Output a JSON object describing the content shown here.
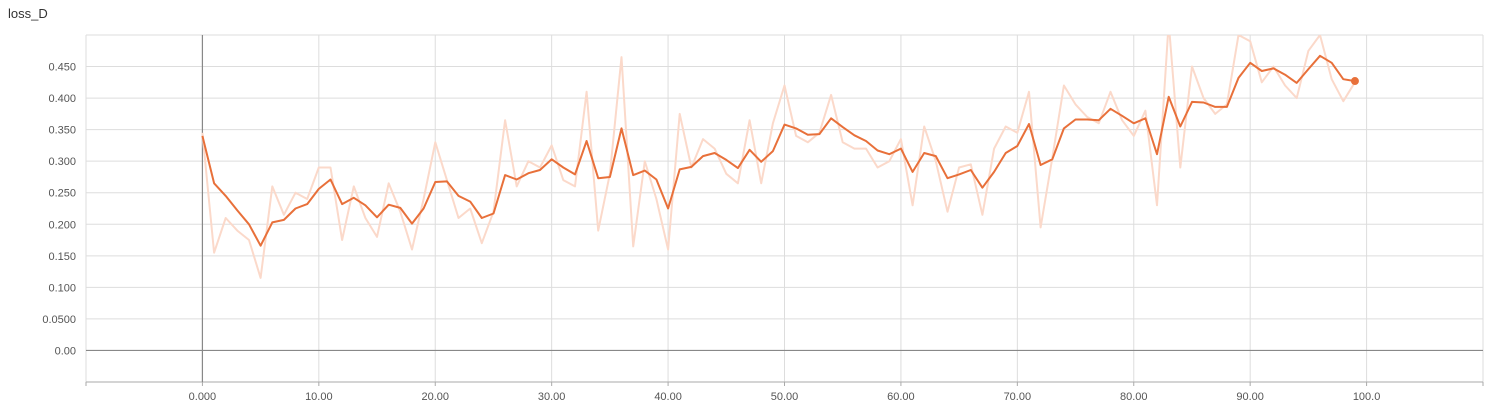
{
  "chart_data": {
    "type": "line",
    "title": "loss_D",
    "xlabel": "",
    "ylabel": "",
    "xlim": [
      -10,
      110
    ],
    "ylim": [
      -0.05,
      0.5
    ],
    "grid": true,
    "legend": "none",
    "x_ticks": [
      0,
      10,
      20,
      30,
      40,
      50,
      60,
      70,
      80,
      90,
      100
    ],
    "x_tick_labels": [
      "0.000",
      "10.00",
      "20.00",
      "30.00",
      "40.00",
      "50.00",
      "60.00",
      "70.00",
      "80.00",
      "90.00",
      "100.0"
    ],
    "y_ticks": [
      0,
      0.05,
      0.1,
      0.15,
      0.2,
      0.25,
      0.3,
      0.35,
      0.4,
      0.45
    ],
    "y_tick_labels": [
      "0.00",
      "0.0500",
      "0.100",
      "0.150",
      "0.200",
      "0.250",
      "0.300",
      "0.350",
      "0.400",
      "0.450"
    ],
    "colors": {
      "smoothed": "#e8703a",
      "raw": "#fbd9ca",
      "axis": "#888888",
      "grid": "#dddddd"
    },
    "x": [
      0,
      1,
      2,
      3,
      4,
      5,
      6,
      7,
      8,
      9,
      10,
      11,
      12,
      13,
      14,
      15,
      16,
      17,
      18,
      19,
      20,
      21,
      22,
      23,
      24,
      25,
      26,
      27,
      28,
      29,
      30,
      31,
      32,
      33,
      34,
      35,
      36,
      37,
      38,
      39,
      40,
      41,
      42,
      43,
      44,
      45,
      46,
      47,
      48,
      49,
      50,
      51,
      52,
      53,
      54,
      55,
      56,
      57,
      58,
      59,
      60,
      61,
      62,
      63,
      64,
      65,
      66,
      67,
      68,
      69,
      70,
      71,
      72,
      73,
      74,
      75,
      76,
      77,
      78,
      79,
      80,
      81,
      82,
      83,
      84,
      85,
      86,
      87,
      88,
      89,
      90,
      91,
      92,
      93,
      94,
      95,
      96,
      97,
      98,
      99
    ],
    "series": [
      {
        "role": "raw",
        "values": [
          0.345,
          0.155,
          0.21,
          0.19,
          0.175,
          0.115,
          0.26,
          0.215,
          0.25,
          0.24,
          0.29,
          0.29,
          0.175,
          0.26,
          0.21,
          0.18,
          0.265,
          0.22,
          0.16,
          0.24,
          0.33,
          0.27,
          0.21,
          0.225,
          0.17,
          0.22,
          0.365,
          0.26,
          0.3,
          0.29,
          0.325,
          0.27,
          0.26,
          0.41,
          0.19,
          0.28,
          0.465,
          0.165,
          0.3,
          0.24,
          0.16,
          0.375,
          0.29,
          0.335,
          0.32,
          0.28,
          0.265,
          0.365,
          0.265,
          0.36,
          0.42,
          0.34,
          0.33,
          0.345,
          0.405,
          0.33,
          0.32,
          0.32,
          0.29,
          0.3,
          0.335,
          0.23,
          0.355,
          0.3,
          0.22,
          0.29,
          0.295,
          0.215,
          0.32,
          0.355,
          0.345,
          0.41,
          0.195,
          0.305,
          0.42,
          0.39,
          0.37,
          0.36,
          0.41,
          0.365,
          0.34,
          0.38,
          0.23,
          0.52,
          0.29,
          0.45,
          0.4,
          0.375,
          0.39,
          0.5,
          0.49,
          0.425,
          0.45,
          0.42,
          0.4,
          0.475,
          0.5,
          0.43,
          0.395,
          0.425
        ]
      },
      {
        "role": "smoothed",
        "values": [
          0.34,
          0.265,
          0.245,
          0.222,
          0.2,
          0.166,
          0.203,
          0.207,
          0.225,
          0.232,
          0.256,
          0.271,
          0.232,
          0.242,
          0.23,
          0.211,
          0.231,
          0.226,
          0.201,
          0.225,
          0.267,
          0.268,
          0.245,
          0.236,
          0.21,
          0.217,
          0.278,
          0.271,
          0.281,
          0.286,
          0.303,
          0.29,
          0.279,
          0.332,
          0.273,
          0.275,
          0.352,
          0.278,
          0.285,
          0.271,
          0.225,
          0.287,
          0.291,
          0.308,
          0.313,
          0.302,
          0.289,
          0.318,
          0.299,
          0.316,
          0.358,
          0.352,
          0.342,
          0.343,
          0.368,
          0.354,
          0.341,
          0.332,
          0.317,
          0.311,
          0.32,
          0.283,
          0.313,
          0.308,
          0.273,
          0.279,
          0.286,
          0.258,
          0.283,
          0.313,
          0.324,
          0.359,
          0.294,
          0.303,
          0.352,
          0.366,
          0.366,
          0.365,
          0.383,
          0.372,
          0.36,
          0.368,
          0.311,
          0.402,
          0.355,
          0.394,
          0.393,
          0.386,
          0.386,
          0.432,
          0.456,
          0.443,
          0.447,
          0.437,
          0.424,
          0.446,
          0.467,
          0.456,
          0.43,
          0.427
        ]
      }
    ]
  }
}
